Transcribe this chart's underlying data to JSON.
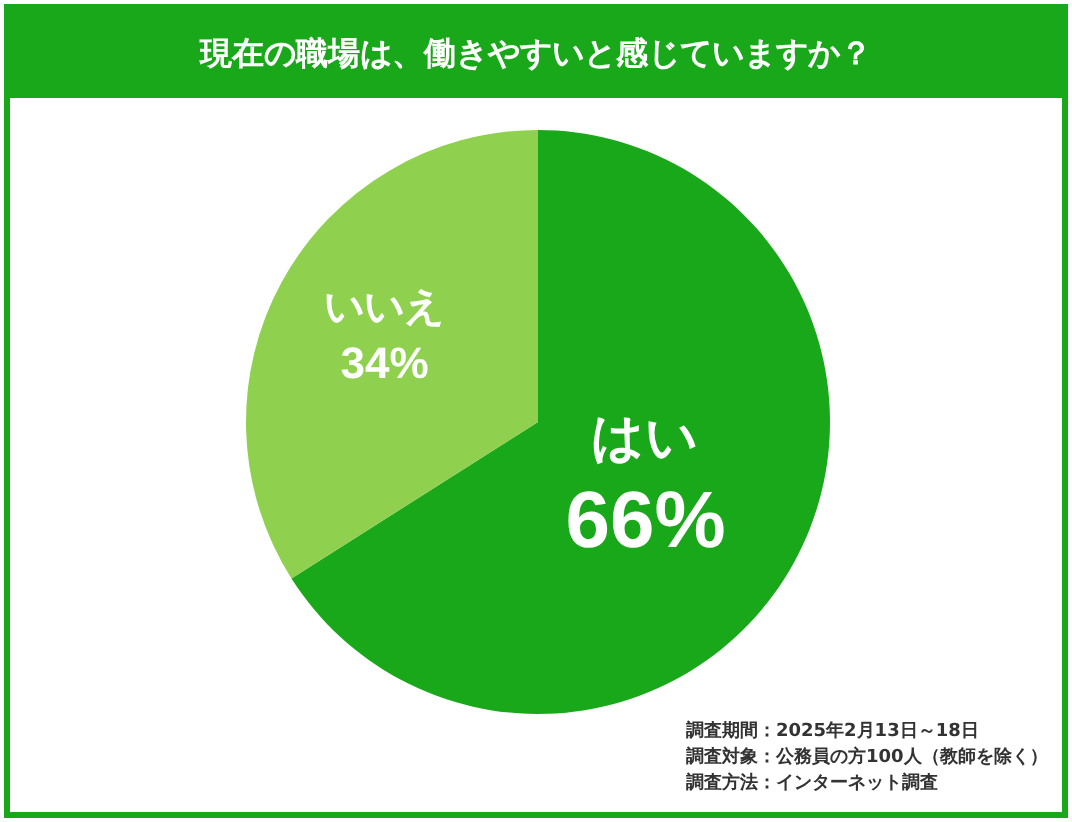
{
  "chart_data": {
    "type": "pie",
    "title": "現在の職場は、働きやすいと感じていますか？",
    "categories": [
      "はい",
      "いいえ"
    ],
    "values": [
      66,
      34
    ],
    "colors": [
      "#19a819",
      "#8fd14f"
    ],
    "value_labels": [
      "66%",
      "34%"
    ],
    "legend": false,
    "annotations": [
      "調査期間：2025年2月13日～18日",
      "調査対象：公務員の方100人（教師を除く）",
      "調査方法：インターネット調査"
    ]
  }
}
